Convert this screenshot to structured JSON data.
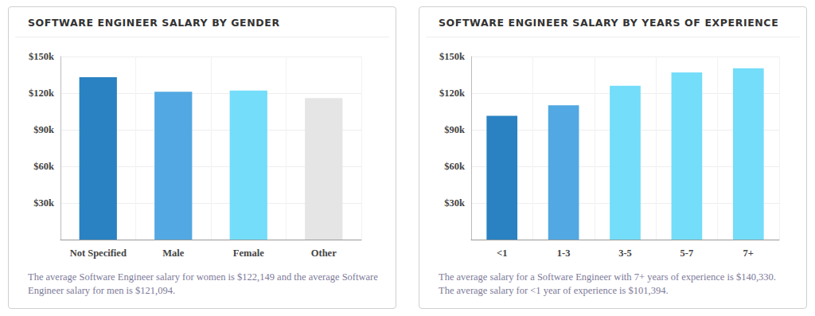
{
  "chart_data": [
    {
      "type": "bar",
      "title": "SOFTWARE ENGINEER SALARY BY GENDER",
      "categories": [
        "Not Specified",
        "Male",
        "Female",
        "Other"
      ],
      "values": [
        133000,
        121094,
        122149,
        116000
      ],
      "colors": [
        "#2a82c2",
        "#52a8e2",
        "#74ddf9",
        "#e5e5e5"
      ],
      "ylim": [
        0,
        150000
      ],
      "yticks": [
        {
          "value": 30000,
          "label": "$30k"
        },
        {
          "value": 60000,
          "label": "$60k"
        },
        {
          "value": 90000,
          "label": "$90k"
        },
        {
          "value": 120000,
          "label": "$120k"
        },
        {
          "value": 150000,
          "label": "$150k"
        }
      ],
      "grid": true,
      "annotations": [
        "The average Software Engineer salary for women is $122,149 and the average Software Engineer salary for men is $121,094."
      ]
    },
    {
      "type": "bar",
      "title": "SOFTWARE ENGINEER SALARY BY YEARS OF EXPERIENCE",
      "categories": [
        "<1",
        "1-3",
        "3-5",
        "5-7",
        "7+"
      ],
      "values": [
        101394,
        110000,
        126000,
        137000,
        140330
      ],
      "colors": [
        "#2a82c2",
        "#52a8e2",
        "#74ddf9",
        "#74ddf9",
        "#74ddf9"
      ],
      "ylim": [
        0,
        150000
      ],
      "yticks": [
        {
          "value": 30000,
          "label": "$30k"
        },
        {
          "value": 60000,
          "label": "$60k"
        },
        {
          "value": 90000,
          "label": "$90k"
        },
        {
          "value": 120000,
          "label": "$120k"
        },
        {
          "value": 150000,
          "label": "$150k"
        }
      ],
      "grid": true,
      "annotations": [
        "The average salary for a Software Engineer with 7+ years of experience is $140,330. The average salary for <1 year of experience is $101,394."
      ]
    }
  ]
}
